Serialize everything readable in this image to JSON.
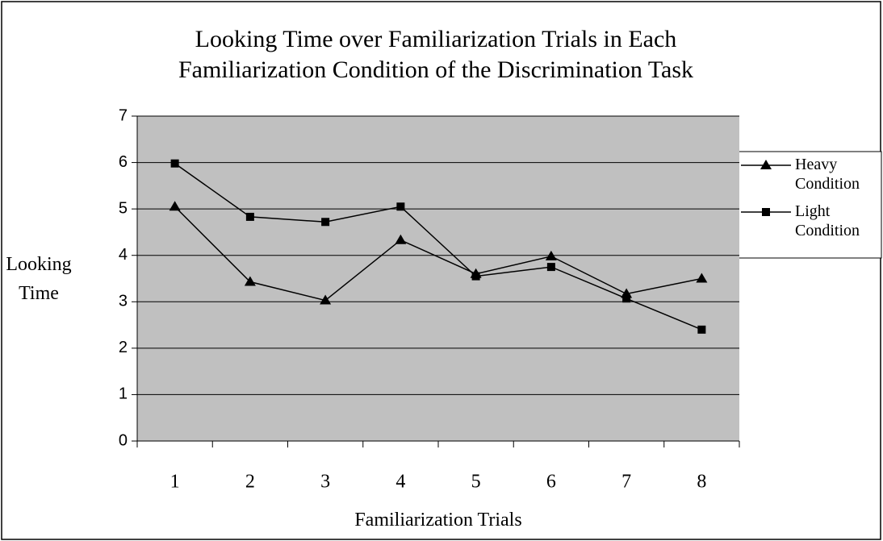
{
  "chart_data": {
    "type": "line",
    "title": "Looking Time over Familiarization Trials in Each Familiarization Condition of the Discrimination Task",
    "x_label": "Familiarization Trials",
    "y_label": "Looking Time",
    "categories": [
      "1",
      "2",
      "3",
      "4",
      "5",
      "6",
      "7",
      "8"
    ],
    "series": [
      {
        "name": "Heavy Condition",
        "color": "#000000",
        "marker": "triangle",
        "values": [
          5.05,
          3.43,
          3.03,
          4.33,
          3.6,
          3.98,
          3.17,
          3.5
        ]
      },
      {
        "name": "Light Condition",
        "color": "#000000",
        "marker": "square",
        "values": [
          5.98,
          4.83,
          4.72,
          5.05,
          3.55,
          3.75,
          3.07,
          2.4
        ]
      }
    ],
    "ylim": [
      0,
      7
    ],
    "yticks": [
      0,
      1,
      2,
      3,
      4,
      5,
      6,
      7
    ],
    "grid": true,
    "legend": "right"
  }
}
